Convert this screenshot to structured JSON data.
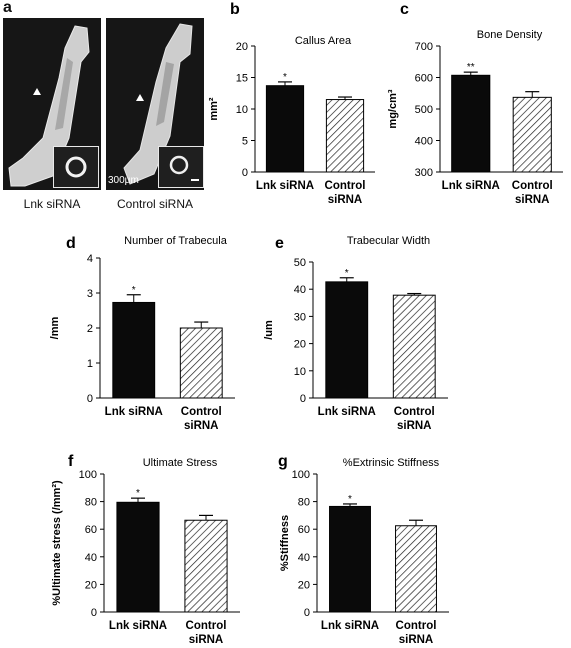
{
  "panel_a": {
    "letter": "a",
    "captions": [
      "Lnk siRNA",
      "Control siRNA"
    ],
    "scale_bar": "300μm"
  },
  "chart_data": [
    {
      "id": "b",
      "letter": "b",
      "type": "bar",
      "title": "Callus Area",
      "ylabel": "mm²",
      "ylim": [
        0,
        20
      ],
      "ticks": [
        0,
        5,
        10,
        15,
        20
      ],
      "categories": [
        "Lnk siRNA",
        "Control siRNA"
      ],
      "category_lines": [
        [
          "Lnk siRNA"
        ],
        [
          "Control",
          "siRNA"
        ]
      ],
      "values": [
        13.7,
        11.5
      ],
      "errors": [
        0.6,
        0.4
      ],
      "significance": [
        "*",
        ""
      ]
    },
    {
      "id": "c",
      "letter": "c",
      "type": "bar",
      "title": "Bone Density",
      "ylabel": "mg/cm³",
      "ylim": [
        300,
        700
      ],
      "ticks": [
        300,
        400,
        500,
        600,
        700
      ],
      "categories": [
        "Lnk siRNA",
        "Control siRNA"
      ],
      "category_lines": [
        [
          "Lnk siRNA"
        ],
        [
          "Control",
          "siRNA"
        ]
      ],
      "values": [
        607,
        537
      ],
      "errors": [
        10,
        18
      ],
      "significance": [
        "**",
        ""
      ]
    },
    {
      "id": "d",
      "letter": "d",
      "type": "bar",
      "title": "Number of Trabecula",
      "ylabel": "/mm",
      "ylim": [
        0,
        4
      ],
      "ticks": [
        0,
        1,
        2,
        3,
        4
      ],
      "categories": [
        "Lnk siRNA",
        "Control siRNA"
      ],
      "category_lines": [
        [
          "Lnk siRNA"
        ],
        [
          "Control",
          "siRNA"
        ]
      ],
      "values": [
        2.73,
        2.0
      ],
      "errors": [
        0.22,
        0.17
      ],
      "significance": [
        "*",
        ""
      ]
    },
    {
      "id": "e",
      "letter": "e",
      "type": "bar",
      "title": "Trabecular Width",
      "ylabel": "/um",
      "ylim": [
        0,
        50
      ],
      "ticks": [
        0,
        10,
        20,
        30,
        40,
        50
      ],
      "categories": [
        "Lnk siRNA",
        "Control siRNA"
      ],
      "category_lines": [
        [
          "Lnk siRNA"
        ],
        [
          "Control",
          "siRNA"
        ]
      ],
      "values": [
        42.7,
        37.8
      ],
      "errors": [
        1.5,
        0.6
      ],
      "significance": [
        "*",
        ""
      ]
    },
    {
      "id": "f",
      "letter": "f",
      "type": "bar",
      "title": "Ultimate Stress",
      "ylabel": "%Ultimate stress (/mm²)",
      "ylim": [
        0,
        100
      ],
      "ticks": [
        0,
        20,
        40,
        60,
        80,
        100
      ],
      "categories": [
        "Lnk siRNA",
        "Control siRNA"
      ],
      "category_lines": [
        [
          "Lnk siRNA"
        ],
        [
          "Control",
          "siRNA"
        ]
      ],
      "values": [
        79.5,
        66.5
      ],
      "errors": [
        3.0,
        3.5
      ],
      "significance": [
        "*",
        ""
      ]
    },
    {
      "id": "g",
      "letter": "g",
      "type": "bar",
      "title": "%Extrinsic Stiffness",
      "ylabel": "%Stiffness",
      "ylim": [
        0,
        100
      ],
      "ticks": [
        0,
        20,
        40,
        60,
        80,
        100
      ],
      "categories": [
        "Lnk siRNA",
        "Control siRNA"
      ],
      "category_lines": [
        [
          "Lnk siRNA"
        ],
        [
          "Control",
          "siRNA"
        ]
      ],
      "values": [
        76.5,
        62.5
      ],
      "errors": [
        1.8,
        4.0
      ],
      "significance": [
        "*",
        ""
      ]
    }
  ]
}
